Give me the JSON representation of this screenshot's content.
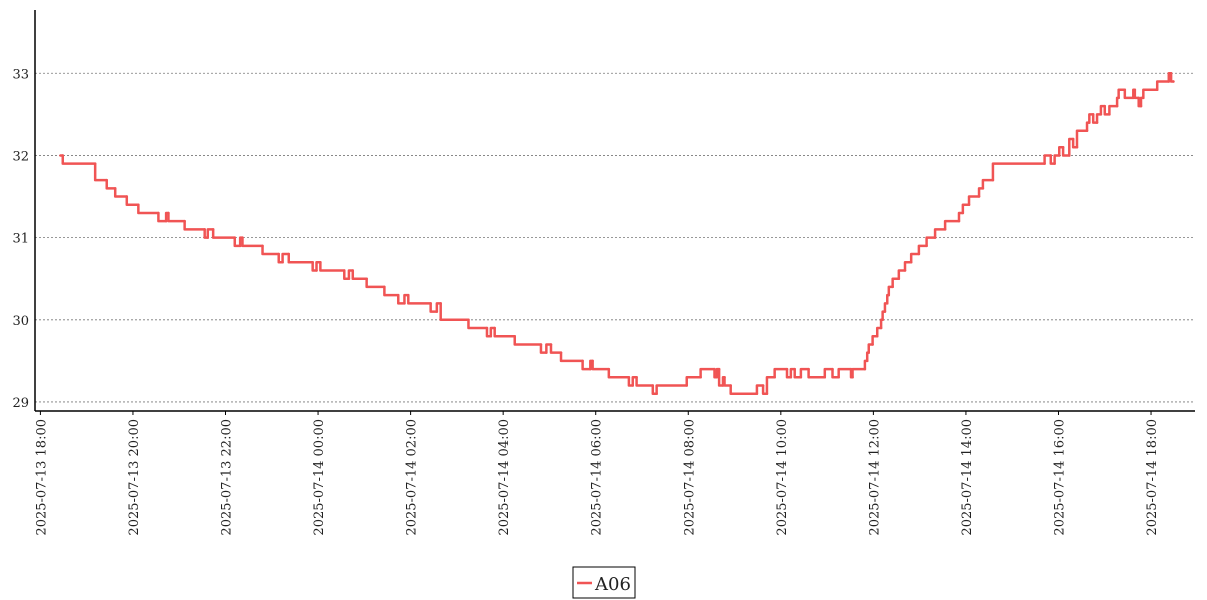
{
  "chart_data": {
    "type": "line",
    "step": "post",
    "grid": true,
    "legend": "bottom",
    "xlim": [
      "2025-07-13 17:53",
      "2025-07-14 18:57"
    ],
    "xticks": [
      "2025-07-13 18:00",
      "2025-07-13 20:00",
      "2025-07-13 22:00",
      "2025-07-14 00:00",
      "2025-07-14 02:00",
      "2025-07-14 04:00",
      "2025-07-14 06:00",
      "2025-07-14 08:00",
      "2025-07-14 10:00",
      "2025-07-14 12:00",
      "2025-07-14 14:00",
      "2025-07-14 16:00",
      "2025-07-14 18:00"
    ],
    "ylim": [
      28.89,
      33.77
    ],
    "yticks": [
      29,
      30,
      31,
      32,
      33
    ],
    "x": [
      "2025-07-13 18:26",
      "2025-07-13 18:29",
      "2025-07-13 19:11",
      "2025-07-13 19:26",
      "2025-07-13 19:37",
      "2025-07-13 19:52",
      "2025-07-13 20:07",
      "2025-07-13 20:33",
      "2025-07-13 20:43",
      "2025-07-13 20:46",
      "2025-07-13 21:07",
      "2025-07-13 21:33",
      "2025-07-13 21:37",
      "2025-07-13 21:44",
      "2025-07-13 22:12",
      "2025-07-13 22:19",
      "2025-07-13 22:22",
      "2025-07-13 22:48",
      "2025-07-13 23:09",
      "2025-07-13 23:14",
      "2025-07-13 23:22",
      "2025-07-13 23:53",
      "2025-07-13 23:58",
      "2025-07-14 00:03",
      "2025-07-14 00:34",
      "2025-07-14 00:40",
      "2025-07-14 00:45",
      "2025-07-14 01:03",
      "2025-07-14 01:26",
      "2025-07-14 01:44",
      "2025-07-14 01:52",
      "2025-07-14 01:57",
      "2025-07-14 02:26",
      "2025-07-14 02:34",
      "2025-07-14 02:39",
      "2025-07-14 03:15",
      "2025-07-14 03:39",
      "2025-07-14 03:44",
      "2025-07-14 03:49",
      "2025-07-14 04:15",
      "2025-07-14 04:49",
      "2025-07-14 04:56",
      "2025-07-14 05:02",
      "2025-07-14 05:15",
      "2025-07-14 05:43",
      "2025-07-14 05:53",
      "2025-07-14 05:56",
      "2025-07-14 06:17",
      "2025-07-14 06:43",
      "2025-07-14 06:48",
      "2025-07-14 06:53",
      "2025-07-14 07:14",
      "2025-07-14 07:19",
      "2025-07-14 07:58",
      "2025-07-14 08:16",
      "2025-07-14 08:34",
      "2025-07-14 08:37",
      "2025-07-14 08:40",
      "2025-07-14 08:45",
      "2025-07-14 08:47",
      "2025-07-14 08:55",
      "2025-07-14 09:29",
      "2025-07-14 09:37",
      "2025-07-14 09:42",
      "2025-07-14 09:52",
      "2025-07-14 10:08",
      "2025-07-14 10:13",
      "2025-07-14 10:18",
      "2025-07-14 10:26",
      "2025-07-14 10:36",
      "2025-07-14 10:57",
      "2025-07-14 11:07",
      "2025-07-14 11:15",
      "2025-07-14 11:31",
      "2025-07-14 11:33",
      "2025-07-14 11:49",
      "2025-07-14 11:52",
      "2025-07-14 11:54",
      "2025-07-14 11:59",
      "2025-07-14 12:05",
      "2025-07-14 12:10",
      "2025-07-14 12:12",
      "2025-07-14 12:15",
      "2025-07-14 12:18",
      "2025-07-14 12:20",
      "2025-07-14 12:25",
      "2025-07-14 12:33",
      "2025-07-14 12:41",
      "2025-07-14 12:49",
      "2025-07-14 12:59",
      "2025-07-14 13:09",
      "2025-07-14 13:20",
      "2025-07-14 13:33",
      "2025-07-14 13:51",
      "2025-07-14 13:56",
      "2025-07-14 14:04",
      "2025-07-14 14:17",
      "2025-07-14 14:22",
      "2025-07-14 14:35",
      "2025-07-14 15:42",
      "2025-07-14 15:50",
      "2025-07-14 15:55",
      "2025-07-14 16:01",
      "2025-07-14 16:06",
      "2025-07-14 16:14",
      "2025-07-14 16:19",
      "2025-07-14 16:24",
      "2025-07-14 16:37",
      "2025-07-14 16:40",
      "2025-07-14 16:45",
      "2025-07-14 16:50",
      "2025-07-14 16:55",
      "2025-07-14 17:00",
      "2025-07-14 17:06",
      "2025-07-14 17:16",
      "2025-07-14 17:18",
      "2025-07-14 17:26",
      "2025-07-14 17:37",
      "2025-07-14 17:39",
      "2025-07-14 17:44",
      "2025-07-14 17:47",
      "2025-07-14 17:50",
      "2025-07-14 18:08",
      "2025-07-14 18:23",
      "2025-07-14 18:26",
      "2025-07-14 18:29"
    ],
    "series": [
      {
        "name": "A06",
        "color": "#f05454",
        "values": [
          32.0,
          31.9,
          31.7,
          31.6,
          31.5,
          31.4,
          31.3,
          31.2,
          31.3,
          31.2,
          31.1,
          31.0,
          31.1,
          31.0,
          30.9,
          31.0,
          30.9,
          30.8,
          30.7,
          30.8,
          30.7,
          30.6,
          30.7,
          30.6,
          30.5,
          30.6,
          30.5,
          30.4,
          30.3,
          30.2,
          30.3,
          30.2,
          30.1,
          30.2,
          30.0,
          29.9,
          29.8,
          29.9,
          29.8,
          29.7,
          29.6,
          29.7,
          29.6,
          29.5,
          29.4,
          29.5,
          29.4,
          29.3,
          29.2,
          29.3,
          29.2,
          29.1,
          29.2,
          29.3,
          29.4,
          29.3,
          29.4,
          29.2,
          29.3,
          29.2,
          29.1,
          29.2,
          29.1,
          29.3,
          29.4,
          29.3,
          29.4,
          29.3,
          29.4,
          29.3,
          29.4,
          29.3,
          29.4,
          29.3,
          29.4,
          29.5,
          29.6,
          29.7,
          29.8,
          29.9,
          30.0,
          30.1,
          30.2,
          30.3,
          30.4,
          30.5,
          30.6,
          30.7,
          30.8,
          30.9,
          31.0,
          31.1,
          31.2,
          31.3,
          31.4,
          31.5,
          31.6,
          31.7,
          31.9,
          32.0,
          31.9,
          32.0,
          32.1,
          32.0,
          32.2,
          32.1,
          32.3,
          32.4,
          32.5,
          32.4,
          32.5,
          32.6,
          32.5,
          32.6,
          32.7,
          32.8,
          32.7,
          32.8,
          32.7,
          32.6,
          32.7,
          32.8,
          32.9,
          33.0,
          32.9,
          32.9
        ]
      }
    ]
  }
}
